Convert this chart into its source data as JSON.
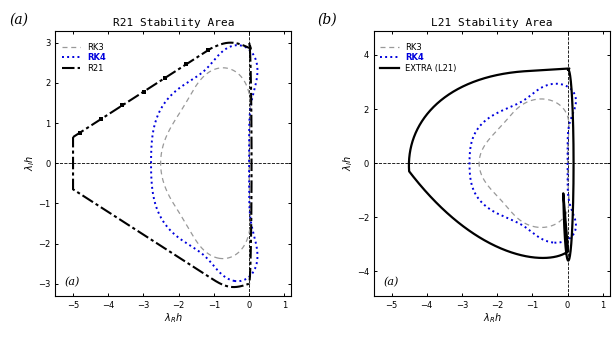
{
  "title_a": "R21 Stability Area",
  "title_b": "L21 Stability Area",
  "label_outer_a": "(a)",
  "label_outer_b": "(b)",
  "label_inner_a": "(a)",
  "label_inner_b": "(a)",
  "xlabel": "$\\lambda_R h$",
  "ylabel_a": "$\\lambda_I h$",
  "ylabel_b": "$\\lambda_I h$",
  "xlim_a": [
    -5.5,
    1.2
  ],
  "ylim_a": [
    -3.3,
    3.3
  ],
  "xlim_b": [
    -5.5,
    1.2
  ],
  "ylim_b": [
    -4.9,
    4.9
  ],
  "xticks": [
    -5.0,
    -4.0,
    -3.0,
    -2.0,
    -1.0,
    0.0,
    1.0
  ],
  "yticks_a": [
    -3.0,
    -2.0,
    -1.0,
    0.0,
    1.0,
    2.0,
    3.0
  ],
  "yticks_b": [
    -4.0,
    -2.0,
    0.0,
    2.0,
    4.0
  ],
  "color_rk3": "#999999",
  "color_rk4": "#0000dd",
  "color_r21": "#000000",
  "color_l21": "#000000",
  "bg_color": "#ffffff",
  "tick_fontsize": 6,
  "label_fontsize": 7,
  "title_fontsize": 8,
  "legend_fontsize": 6
}
